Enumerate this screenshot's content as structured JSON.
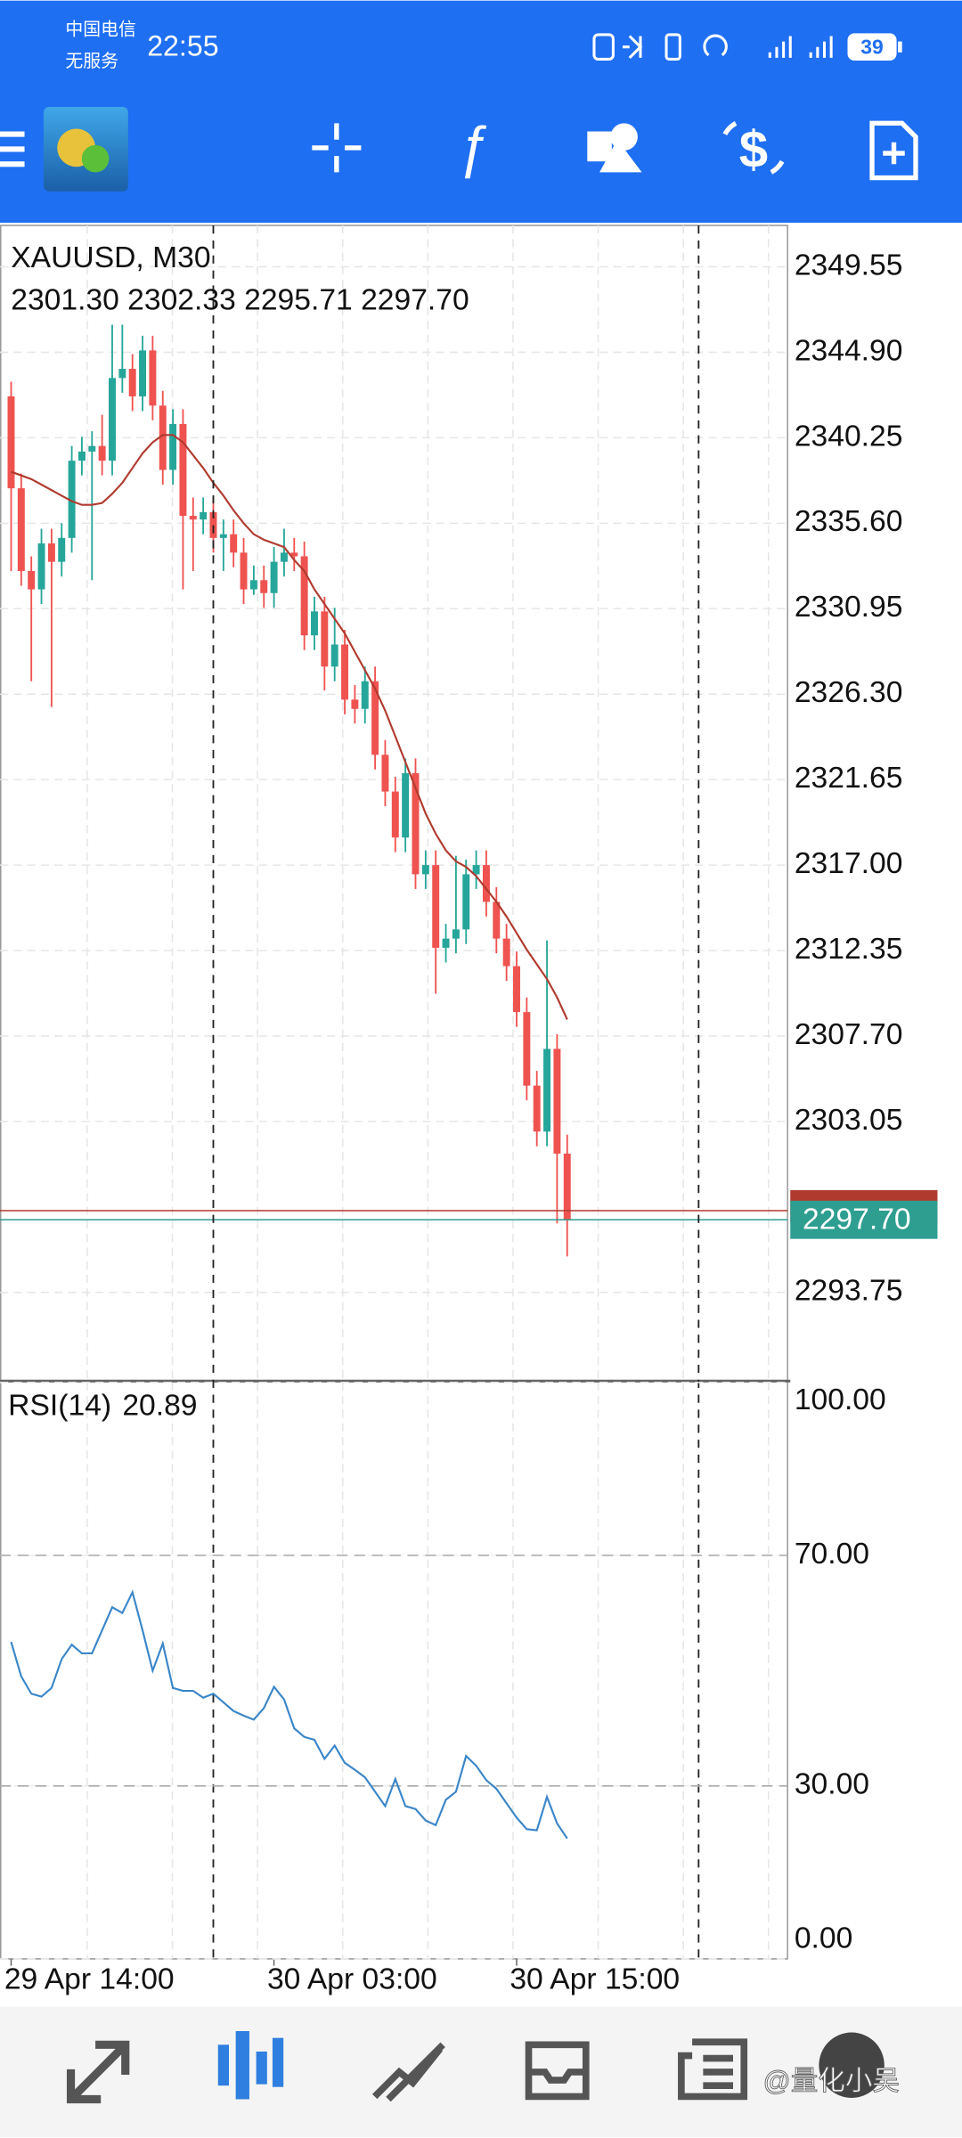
{
  "status_bar": {
    "carrier": "中国电信",
    "service": "无服务",
    "time": "22:55",
    "battery": "39"
  },
  "chart_data": [
    {
      "type": "candlestick",
      "title": "XAUUSD, M30",
      "subtitle": "2301.30 2302.33 2295.71 2297.70",
      "up_color": "#26a69a",
      "down_color": "#ef5350",
      "grid": true,
      "open": [
        2342.5,
        2337.5,
        2333.0,
        2332.0,
        2334.5,
        2333.5,
        2334.8,
        2339.0,
        2339.5,
        2339.8,
        2339.0,
        2343.5,
        2344.0,
        2342.5,
        2345.0,
        2342.0,
        2338.5,
        2341.0,
        2336.0,
        2335.8,
        2336.2,
        2334.8,
        2335.0,
        2334.0,
        2332.0,
        2332.5,
        2331.8,
        2333.5,
        2334.0,
        2333.8,
        2329.5,
        2330.8,
        2327.8,
        2329.0,
        2326.0,
        2325.5,
        2327.0,
        2323.0,
        2321.0,
        2318.5,
        2322.0,
        2316.5,
        2317.0,
        2312.5,
        2313.0,
        2313.5,
        2316.5,
        2317.0,
        2315.0,
        2313.0,
        2311.5,
        2309.0,
        2305.0,
        2302.5,
        2307.0,
        2301.3
      ],
      "high": [
        2343.3,
        2338.3,
        2333.8,
        2335.3,
        2335.3,
        2335.6,
        2339.8,
        2340.3,
        2340.6,
        2341.5,
        2346.4,
        2346.4,
        2344.8,
        2345.8,
        2345.8,
        2342.8,
        2341.8,
        2341.8,
        2337.0,
        2337.0,
        2337.0,
        2335.8,
        2335.8,
        2334.8,
        2333.3,
        2333.3,
        2334.3,
        2335.3,
        2334.8,
        2334.6,
        2331.6,
        2331.6,
        2331.0,
        2329.8,
        2326.8,
        2327.8,
        2327.8,
        2323.8,
        2321.8,
        2322.8,
        2322.8,
        2317.8,
        2317.8,
        2313.8,
        2317.5,
        2317.3,
        2317.8,
        2317.8,
        2315.8,
        2313.8,
        2312.3,
        2309.8,
        2305.8,
        2312.9,
        2307.8,
        2302.33
      ],
      "low": [
        2333.0,
        2332.2,
        2327.0,
        2331.2,
        2325.6,
        2332.7,
        2334.0,
        2338.2,
        2332.5,
        2338.2,
        2338.2,
        2342.7,
        2341.7,
        2341.7,
        2341.2,
        2337.7,
        2337.7,
        2332.0,
        2333.0,
        2335.0,
        2334.0,
        2333.0,
        2333.2,
        2331.2,
        2331.7,
        2331.0,
        2331.0,
        2332.7,
        2333.0,
        2328.7,
        2328.7,
        2326.5,
        2327.0,
        2325.2,
        2324.7,
        2324.7,
        2322.2,
        2320.2,
        2317.7,
        2317.7,
        2315.7,
        2315.7,
        2310.0,
        2311.7,
        2312.2,
        2312.7,
        2315.7,
        2314.2,
        2312.2,
        2310.7,
        2308.2,
        2304.2,
        2301.7,
        2301.7,
        2297.5,
        2295.71
      ],
      "close": [
        2337.5,
        2333.0,
        2332.0,
        2334.5,
        2333.5,
        2334.8,
        2339.0,
        2339.5,
        2339.8,
        2339.0,
        2343.5,
        2344.0,
        2342.5,
        2345.0,
        2342.0,
        2338.5,
        2341.0,
        2336.0,
        2335.8,
        2336.2,
        2334.8,
        2335.0,
        2334.0,
        2332.0,
        2332.5,
        2331.8,
        2333.5,
        2334.0,
        2333.8,
        2329.5,
        2330.8,
        2327.8,
        2329.0,
        2326.0,
        2325.5,
        2327.0,
        2323.0,
        2321.0,
        2318.5,
        2322.0,
        2316.5,
        2317.0,
        2312.5,
        2313.0,
        2313.5,
        2316.5,
        2317.0,
        2315.0,
        2313.0,
        2311.5,
        2309.0,
        2305.0,
        2302.5,
        2307.0,
        2301.3,
        2297.7
      ],
      "moving_average": {
        "color": "#b03a2e",
        "values": [
          2338.4,
          2338.2,
          2338.0,
          2337.7,
          2337.4,
          2337.1,
          2336.8,
          2336.6,
          2336.6,
          2336.7,
          2337.2,
          2337.8,
          2338.6,
          2339.4,
          2340.0,
          2340.4,
          2340.4,
          2340.0,
          2339.3,
          2338.6,
          2337.8,
          2337.1,
          2336.3,
          2335.6,
          2335.0,
          2334.7,
          2334.5,
          2334.3,
          2333.6,
          2333.0,
          2332.0,
          2331.2,
          2330.4,
          2329.6,
          2328.6,
          2327.6,
          2326.6,
          2325.4,
          2324.0,
          2322.6,
          2321.2,
          2319.8,
          2318.7,
          2317.8,
          2317.2,
          2316.9,
          2316.4,
          2315.7,
          2315.0,
          2314.2,
          2313.3,
          2312.4,
          2311.6,
          2310.8,
          2309.8,
          2308.6
        ]
      },
      "bid": {
        "value": 2297.7,
        "label": "2297.70",
        "color": "#2e9e90"
      },
      "ask": {
        "value": 2298.2,
        "color": "#b03a2e"
      },
      "separators": [
        20,
        68
      ],
      "xlim": [
        -1.1,
        76.8
      ],
      "xticks": [
        {
          "value": 0,
          "label": "29 Apr 14:00"
        },
        {
          "value": 26,
          "label": "30 Apr 03:00"
        },
        {
          "value": 50,
          "label": "30 Apr 15:00"
        }
      ],
      "ylim": [
        2289.0,
        2351.8
      ],
      "yticks": [
        {
          "value": 2349.55,
          "label": "2349.55"
        },
        {
          "value": 2344.9,
          "label": "2344.90"
        },
        {
          "value": 2340.25,
          "label": "2340.25"
        },
        {
          "value": 2335.6,
          "label": "2335.60"
        },
        {
          "value": 2330.95,
          "label": "2330.95"
        },
        {
          "value": 2326.3,
          "label": "2326.30"
        },
        {
          "value": 2321.65,
          "label": "2321.65"
        },
        {
          "value": 2317,
          "label": "2317.00"
        },
        {
          "value": 2312.35,
          "label": "2312.35"
        },
        {
          "value": 2307.7,
          "label": "2307.70"
        },
        {
          "value": 2303.05,
          "label": "2303.05"
        },
        {
          "value": 2293.75,
          "label": "2293.75"
        }
      ]
    },
    {
      "type": "line",
      "title": "RSI(14)",
      "series": [
        {
          "color": "#3a86c8",
          "values": [
            55,
            49,
            46,
            45.5,
            47,
            52,
            54.5,
            53,
            53,
            57,
            61,
            60,
            63.6,
            57,
            50,
            54.7,
            47,
            46.5,
            46.5,
            45.3,
            46,
            44.5,
            43,
            42.2,
            41.5,
            43.5,
            47.2,
            45,
            40,
            38.5,
            38,
            34.7,
            37,
            34,
            32.8,
            31.5,
            29,
            26.5,
            31.2,
            26.5,
            26,
            24,
            23.2,
            27.6,
            29,
            35.2,
            33.5,
            31,
            29.5,
            27,
            24.5,
            22.5,
            22.3,
            28.1,
            23.5,
            20.89
          ]
        }
      ],
      "xlim": [
        -1.1,
        76.8
      ],
      "ylim": [
        0,
        100
      ],
      "yticks": [
        {
          "value": 100,
          "label": "100.00"
        },
        {
          "value": 70,
          "label": "70.00"
        },
        {
          "value": 30,
          "label": "30.00"
        },
        {
          "value": 0,
          "label": "0.00"
        }
      ],
      "levels": [
        70,
        30
      ]
    }
  ],
  "watermark": "@量化小吴"
}
